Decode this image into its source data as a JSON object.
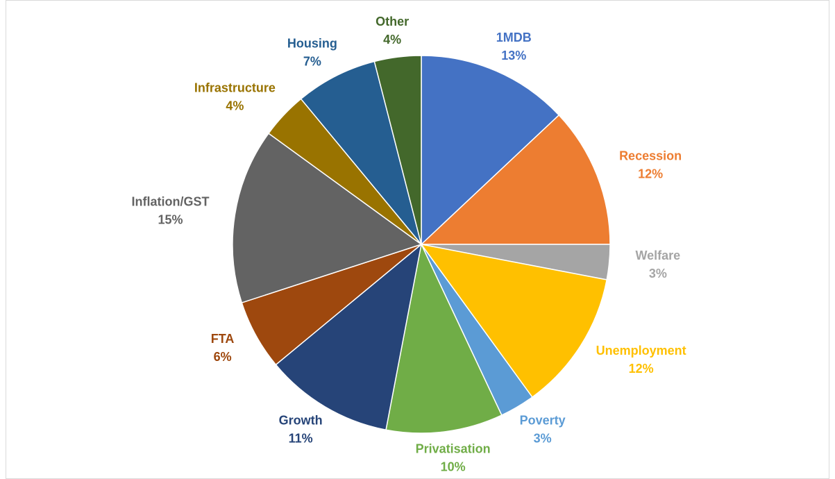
{
  "chart_data": {
    "type": "pie",
    "categories": [
      "1MDB",
      "Recession",
      "Welfare",
      "Unemployment",
      "Poverty",
      "Privatisation",
      "Growth",
      "FTA",
      "Inflation/GST",
      "Infrastructure",
      "Housing",
      "Other"
    ],
    "values": [
      13,
      12,
      3,
      12,
      3,
      10,
      11,
      6,
      15,
      4,
      7,
      4
    ],
    "value_labels": [
      "13%",
      "12%",
      "3%",
      "12%",
      "3%",
      "10%",
      "11%",
      "6%",
      "15%",
      "4%",
      "7%",
      "4%"
    ],
    "colors": [
      "#4472c4",
      "#ed7d31",
      "#a5a5a5",
      "#ffc000",
      "#5b9bd5",
      "#70ad47",
      "#264478",
      "#9e480e",
      "#636363",
      "#997300",
      "#255e91",
      "#43682b"
    ]
  }
}
